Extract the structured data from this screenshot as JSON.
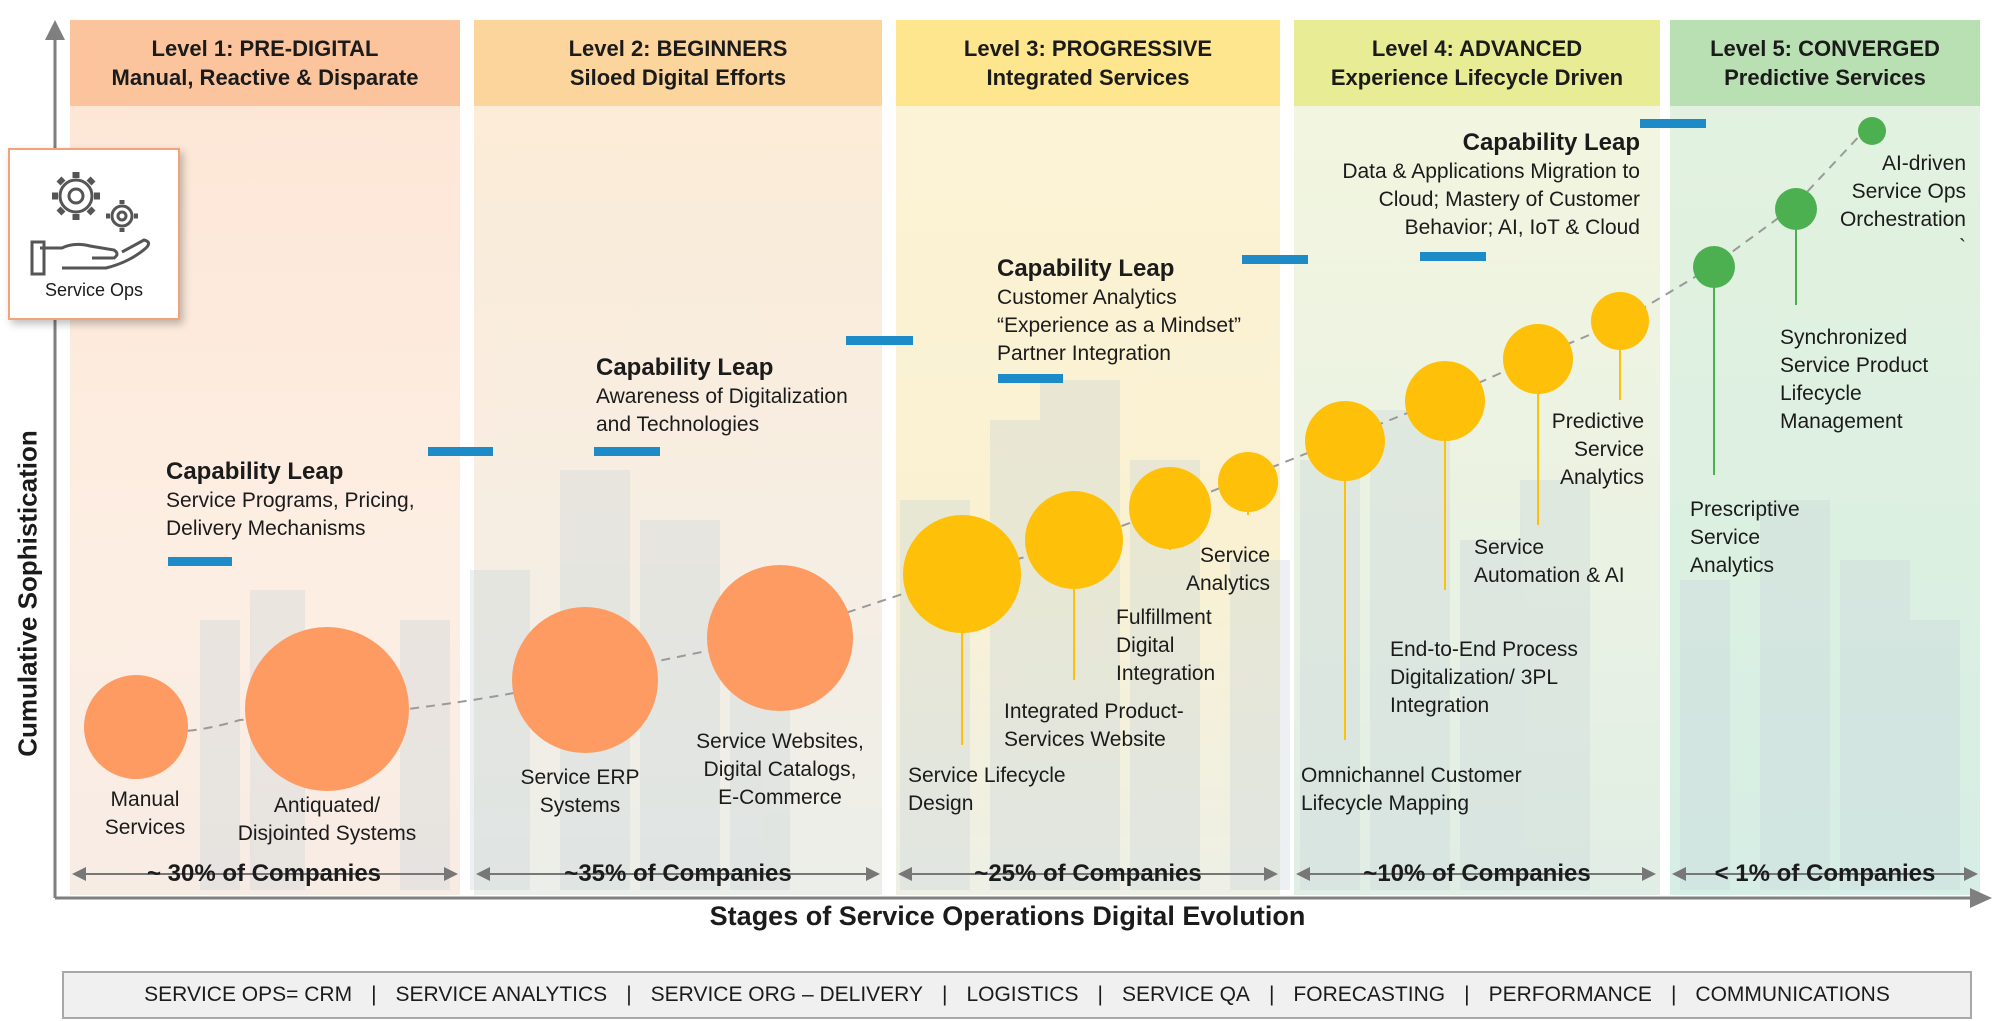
{
  "levels": [
    {
      "title": "Level 1: PRE-DIGITAL",
      "subtitle": "Manual, Reactive & Disparate",
      "pct": "~ 30% of Companies",
      "header_color": "#fbc49d"
    },
    {
      "title": "Level 2: BEGINNERS",
      "subtitle": "Siloed Digital Efforts",
      "pct": "~35% of Companies",
      "header_color": "#fcd59c"
    },
    {
      "title": "Level 3: PROGRESSIVE",
      "subtitle": "Integrated Services",
      "pct": "~25% of Companies",
      "header_color": "#fde68d"
    },
    {
      "title": "Level 4: ADVANCED",
      "subtitle": "Experience Lifecycle Driven",
      "pct": "~10% of Companies",
      "header_color": "#e7ec95"
    },
    {
      "title": "Level 5: CONVERGED",
      "subtitle": "Predictive Services",
      "pct": "< 1% of Companies",
      "header_color": "#b9e0b2"
    }
  ],
  "capability_leaps": [
    {
      "title": "Capability Leap",
      "lines": [
        "Service Programs, Pricing,",
        "Delivery Mechanisms"
      ]
    },
    {
      "title": "Capability Leap",
      "lines": [
        "Awareness of Digitalization",
        "and Technologies"
      ]
    },
    {
      "title": "Capability Leap",
      "lines": [
        "Customer Analytics",
        "“Experience as a Mindset”",
        "Partner Integration"
      ]
    },
    {
      "title": "Capability Leap",
      "lines": [
        "Data & Applications Migration to",
        "Cloud; Mastery of Customer",
        "Behavior; AI, IoT & Cloud"
      ]
    }
  ],
  "stages": [
    {
      "label": "Manual\nServices",
      "color": "orange"
    },
    {
      "label": "Antiquated/\nDisjointed Systems",
      "color": "orange"
    },
    {
      "label": "Service ERP\nSystems",
      "color": "orange"
    },
    {
      "label": "Service Websites,\nDigital Catalogs,\nE-Commerce",
      "color": "orange"
    },
    {
      "label": "Service Lifecycle\nDesign",
      "color": "yellow"
    },
    {
      "label": "Integrated Product-\nServices Website",
      "color": "yellow"
    },
    {
      "label": "Fulfillment\nDigital\nIntegration",
      "color": "yellow"
    },
    {
      "label": "Service\nAnalytics",
      "color": "yellow"
    },
    {
      "label": "Omnichannel Customer\nLifecycle Mapping",
      "color": "yellow"
    },
    {
      "label": "End-to-End Process\nDigitalization/ 3PL\nIntegration",
      "color": "yellow"
    },
    {
      "label": "Service\nAutomation & AI",
      "color": "yellow"
    },
    {
      "label": "Predictive\nService\nAnalytics",
      "color": "yellow"
    },
    {
      "label": "Prescriptive\nService\nAnalytics",
      "color": "green"
    },
    {
      "label": "Synchronized\nService Product\nLifecycle\nManagement",
      "color": "green"
    },
    {
      "label": "AI-driven\nService Ops\nOrchestration\n`",
      "color": "green"
    }
  ],
  "axes": {
    "y_label": "Cumulative Sophistication",
    "x_label": "Stages of Service Operations Digital Evolution"
  },
  "service_ops_card": {
    "label": "Service Ops",
    "icon": "gears-hand-icon"
  },
  "bottom_bar": [
    "SERVICE OPS= CRM",
    "SERVICE ANALYTICS",
    "SERVICE ORG – DELIVERY",
    "LOGISTICS",
    "SERVICE QA",
    "FORECASTING",
    "PERFORMANCE",
    "COMMUNICATIONS"
  ],
  "colors": {
    "orange": "#fd9b62",
    "yellow": "#fec009",
    "green": "#4caf50",
    "accent_blue": "#1e8bc9",
    "axis": "#7f7f7f"
  }
}
